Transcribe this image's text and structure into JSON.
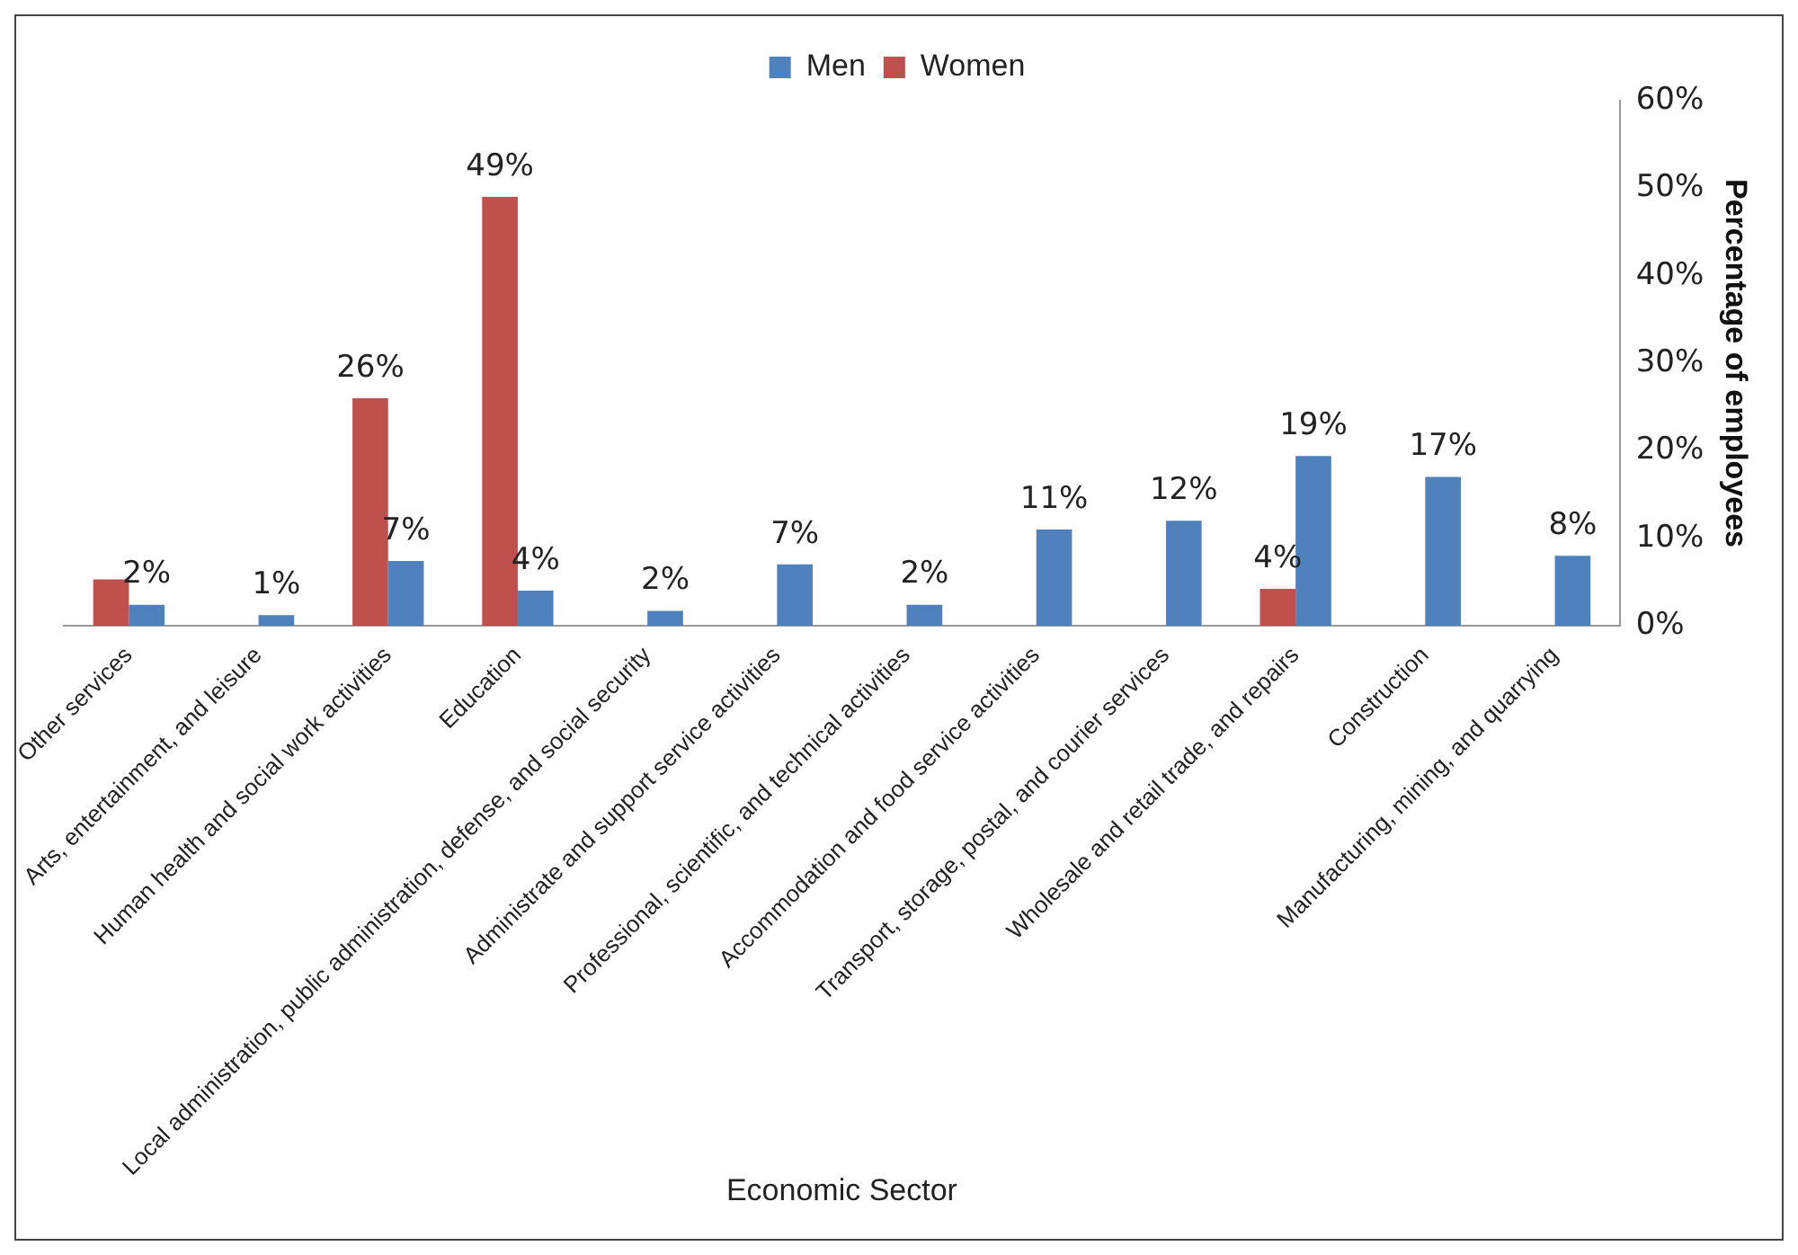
{
  "chart_data": {
    "type": "bar",
    "xlabel": "Economic Sector",
    "ylabel": "Percentage of employees",
    "categories": [
      "Other services",
      "Arts, entertainment, and leisure",
      "Human health and social work activities",
      "Education",
      "Local administration, public administration, defense, and social security",
      "Administrate and support service activities",
      "Professional, scientific, and technical activities",
      "Accommodation and food service activities",
      "Transport, storage, postal, and courier services",
      "Wholesale and retail trade, and repairs",
      "Construction",
      "Manufacturing, mining, and quarrying"
    ],
    "series": [
      {
        "name": "Women",
        "color": "#c0504d",
        "values": [
          5.3,
          null,
          26,
          49,
          null,
          null,
          null,
          null,
          null,
          4.2,
          null,
          null
        ],
        "value_labels": [
          null,
          null,
          "26%",
          "49%",
          null,
          null,
          null,
          null,
          null,
          "4%",
          null,
          null
        ]
      },
      {
        "name": "Men",
        "color": "#4f81bd",
        "values": [
          2.4,
          1.2,
          7.4,
          4,
          1.7,
          7,
          2.4,
          11,
          12,
          19.4,
          17,
          8
        ],
        "value_labels": [
          "2%",
          "1%",
          "7%",
          "4%",
          "2%",
          "7%",
          "2%",
          "11%",
          "12%",
          "19%",
          "17%",
          "8%"
        ]
      }
    ],
    "ylim": [
      0,
      60
    ],
    "yticks": [
      {
        "value": 0,
        "label": "0%"
      },
      {
        "value": 10,
        "label": "10%"
      },
      {
        "value": 20,
        "label": "20%"
      },
      {
        "value": 30,
        "label": "30%"
      },
      {
        "value": 40,
        "label": "40%"
      },
      {
        "value": 50,
        "label": "50%"
      },
      {
        "value": 60,
        "label": "60%"
      }
    ],
    "grid": false,
    "legend": "top"
  }
}
